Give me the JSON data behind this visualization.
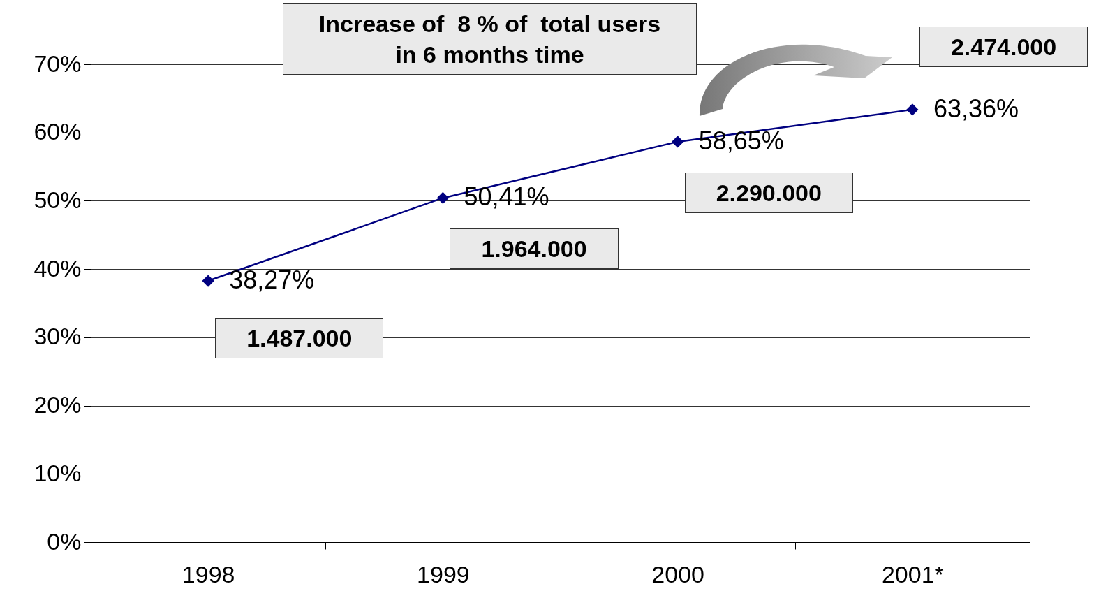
{
  "chart_data": {
    "type": "line",
    "categories": [
      "1998",
      "1999",
      "2000",
      "2001*"
    ],
    "series": [
      {
        "color": "#000080",
        "values": [
          38.27,
          50.41,
          58.65,
          63.36
        ],
        "value_labels": [
          "38,27%",
          "50,41%",
          "58,65%",
          "63,36%"
        ]
      }
    ],
    "ylim": [
      0,
      70
    ],
    "yticks": [
      {
        "value": 0,
        "label": "0%"
      },
      {
        "value": 10,
        "label": "10%"
      },
      {
        "value": 20,
        "label": "20%"
      },
      {
        "value": 30,
        "label": "30%"
      },
      {
        "value": 40,
        "label": "40%"
      },
      {
        "value": 50,
        "label": "50%"
      },
      {
        "value": 60,
        "label": "60%"
      },
      {
        "value": 70,
        "label": "70%"
      }
    ],
    "grid": "y",
    "marker": "diamond",
    "line_style": "solid",
    "annotations": [
      "Increase of  8 % of  total users\nin 6 months time",
      "1.487.000",
      "1.964.000",
      "2.290.000",
      "2.474.000"
    ]
  }
}
